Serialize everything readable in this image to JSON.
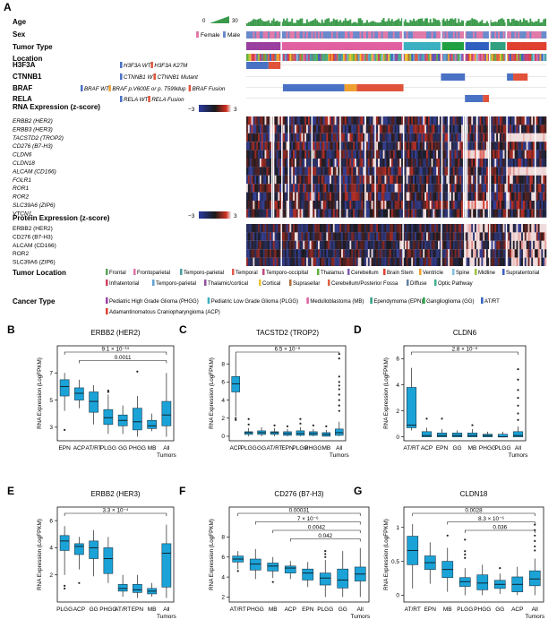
{
  "panel_labels": [
    "A",
    "B",
    "C",
    "D",
    "E",
    "F",
    "G"
  ],
  "heatmap": {
    "annotation_tracks": [
      "Age",
      "Sex",
      "Tumor Type",
      "Location"
    ],
    "age_legend": {
      "min": "0",
      "max": "30"
    },
    "sex_legend": [
      "Female",
      "Male"
    ],
    "mutation_tracks": [
      {
        "label": "H3F3A",
        "legend": [
          {
            "text": "H3F3A WT",
            "italic": true,
            "color": "#4a72c4"
          },
          {
            "text": "H3F3A K27M",
            "italic": true,
            "color": "#e0533a"
          }
        ]
      },
      {
        "label": "CTNNB1",
        "legend": [
          {
            "text": "CTNNB1 WT",
            "italic": true,
            "color": "#4a72c4"
          },
          {
            "text": "CTNNB1 Mutant",
            "italic": true,
            "color": "#e0533a"
          }
        ]
      },
      {
        "label": "BRAF",
        "legend": [
          {
            "text": "BRAF WT",
            "italic": true,
            "color": "#4a72c4"
          },
          {
            "text": "BRAF p.V600E or p. T599dup",
            "italic": true,
            "color": "#f0a030"
          },
          {
            "text": "BRAF Fusion",
            "italic": true,
            "color": "#e0533a"
          }
        ]
      },
      {
        "label": "RELA",
        "legend": [
          {
            "text": "RELA WT",
            "italic": true,
            "color": "#4a72c4"
          },
          {
            "text": "RELA Fusion",
            "italic": true,
            "color": "#e0533a"
          }
        ]
      }
    ],
    "rna_title": "RNA Expression (z-score)",
    "rna_genes": [
      "ERBB2 (HER2)",
      "ERBB3 (HER3)",
      "TACSTD2 (TROP2)",
      "CD276 (B7-H3)",
      "CLDN6",
      "CLDN18",
      "ALCAM (CD166)",
      "FOLR1",
      "ROR1",
      "ROR2",
      "SLC39A6 (ZIP6)",
      "VTCN1"
    ],
    "protein_title": "Protein Expression (z-score)",
    "protein_genes": [
      "ERBB2 (HER2)",
      "CD276 (B7-H3)",
      "ALCAM (CD166)",
      "ROR2",
      "SLC39A6 (ZIP6)"
    ],
    "zscale": {
      "min": "−3",
      "max": "3"
    },
    "tumor_location_title": "Tumor Location",
    "tumor_locations": [
      {
        "name": "Frontal",
        "color": "#5aa65a"
      },
      {
        "name": "Frontoparietal",
        "color": "#e070a8"
      },
      {
        "name": "Temporo-parietal",
        "color": "#4aa0a0"
      },
      {
        "name": "Temporal",
        "color": "#e05a50"
      },
      {
        "name": "Temporo-occipital",
        "color": "#c04a80"
      },
      {
        "name": "Thalamus",
        "color": "#60b040"
      },
      {
        "name": "Cerebellum",
        "color": "#8060b0"
      },
      {
        "name": "Brain Stem",
        "color": "#e04030"
      },
      {
        "name": "Ventricle",
        "color": "#f0a030"
      },
      {
        "name": "Spine",
        "color": "#80c0e0"
      },
      {
        "name": "Midline",
        "color": "#a0c040"
      },
      {
        "name": "Supratentorial",
        "color": "#4060c0"
      },
      {
        "name": "Infratentorial",
        "color": "#d04060"
      },
      {
        "name": "Temporo-parietal",
        "color": "#60a0d0"
      },
      {
        "name": "Thalamic/cortical",
        "color": "#9050a0"
      },
      {
        "name": "Cortical",
        "color": "#f0c030"
      },
      {
        "name": "Suprasellar",
        "color": "#b07040"
      },
      {
        "name": "Cerebellum/Posterior Fossa",
        "color": "#e06040"
      },
      {
        "name": "Diffuse",
        "color": "#6080a0"
      },
      {
        "name": "Optic Pathway",
        "color": "#40b090"
      }
    ],
    "cancer_type_title": "Cancer Type",
    "cancer_types": [
      {
        "name": "Pediatric High Grade Glioma (PHGG)",
        "color": "#9a3fa0"
      },
      {
        "name": "Pediatric Low Grade Glioma (PLGG)",
        "color": "#3ab0c0"
      },
      {
        "name": "Medulloblastoma (MB)",
        "color": "#e060a0"
      },
      {
        "name": "Ependymoma (EPN)",
        "color": "#30a080"
      },
      {
        "name": "Ganglioglioma (GG)",
        "color": "#20a040"
      },
      {
        "name": "AT/RT",
        "color": "#3060c0"
      },
      {
        "name": "Adamantinomatous Craniopharyngioma (ACP)",
        "color": "#e04030"
      }
    ]
  },
  "chart_data": [
    {
      "panel": "B",
      "type": "box",
      "title": "ERBB2 (HER2)",
      "ylabel": "RNA Expression (LogFPKM)",
      "ylim": [
        2,
        9
      ],
      "yticks": [
        "3",
        "5",
        "7"
      ],
      "categories": [
        "EPN",
        "ACP",
        "AT/RT",
        "PLGG",
        "GG",
        "PHGG",
        "MB",
        "All Tumors"
      ],
      "boxes": [
        {
          "q1": 5.3,
          "median": 6.0,
          "q3": 6.5,
          "lo": 4.2,
          "hi": 7.0,
          "out": [
            2.8
          ]
        },
        {
          "q1": 5.0,
          "median": 5.5,
          "q3": 5.9,
          "lo": 4.4,
          "hi": 6.5,
          "out": []
        },
        {
          "q1": 4.1,
          "median": 4.9,
          "q3": 5.6,
          "lo": 3.2,
          "hi": 6.1,
          "out": []
        },
        {
          "q1": 3.2,
          "median": 3.7,
          "q3": 4.3,
          "lo": 2.5,
          "hi": 5.4,
          "out": [
            5.6,
            5.7
          ]
        },
        {
          "q1": 3.1,
          "median": 3.5,
          "q3": 3.9,
          "lo": 2.5,
          "hi": 4.6,
          "out": []
        },
        {
          "q1": 2.8,
          "median": 3.4,
          "q3": 4.4,
          "lo": 2.3,
          "hi": 5.3,
          "out": [
            7.1
          ]
        },
        {
          "q1": 2.9,
          "median": 3.1,
          "q3": 3.5,
          "lo": 2.7,
          "hi": 4.0,
          "out": []
        },
        {
          "q1": 3.1,
          "median": 3.9,
          "q3": 4.9,
          "lo": 2.3,
          "hi": 7.0,
          "out": []
        }
      ],
      "brackets": [
        {
          "from": 0,
          "to": 7,
          "label": "9.1 × 10⁻¹⁵"
        },
        {
          "from": 1,
          "to": 7,
          "label": "0.0011"
        }
      ]
    },
    {
      "panel": "C",
      "type": "box",
      "title": "TACSTD2 (TROP2)",
      "ylabel": "RNA Expression (LogFPKM)",
      "ylim": [
        -0.5,
        10
      ],
      "yticks": [
        "0",
        "2",
        "4",
        "6",
        "8"
      ],
      "categories": [
        "ACP",
        "PLGG",
        "GG",
        "AT/RT",
        "EPN",
        "PLGG",
        "PHGG",
        "MB",
        "All Tumors"
      ],
      "boxes": [
        {
          "q1": 4.9,
          "median": 5.8,
          "q3": 6.6,
          "lo": 2.2,
          "hi": 9.0,
          "out": [
            1.8,
            2.0
          ]
        },
        {
          "q1": 0.2,
          "median": 0.4,
          "q3": 0.5,
          "lo": 0.0,
          "hi": 0.9,
          "out": [
            1.3,
            1.9
          ]
        },
        {
          "q1": 0.2,
          "median": 0.4,
          "q3": 0.6,
          "lo": 0.0,
          "hi": 1.0,
          "out": []
        },
        {
          "q1": 0.2,
          "median": 0.4,
          "q3": 0.5,
          "lo": 0.0,
          "hi": 0.9,
          "out": [
            1.2
          ]
        },
        {
          "q1": 0.1,
          "median": 0.3,
          "q3": 0.5,
          "lo": 0.0,
          "hi": 0.8,
          "out": [
            1.1
          ]
        },
        {
          "q1": 0.1,
          "median": 0.3,
          "q3": 0.6,
          "lo": 0.0,
          "hi": 1.0,
          "out": [
            1.4,
            1.9
          ]
        },
        {
          "q1": 0.1,
          "median": 0.3,
          "q3": 0.5,
          "lo": 0.0,
          "hi": 0.8,
          "out": [
            1.2
          ]
        },
        {
          "q1": 0.0,
          "median": 0.2,
          "q3": 0.4,
          "lo": 0.0,
          "hi": 0.7,
          "out": [
            1.1
          ]
        },
        {
          "q1": 0.1,
          "median": 0.4,
          "q3": 0.8,
          "lo": 0.0,
          "hi": 1.6,
          "out": [
            2.8,
            3.4,
            4.0,
            4.6,
            5.2,
            5.6,
            6.0,
            6.6,
            8.6,
            9.1
          ]
        }
      ],
      "brackets": [
        {
          "from": 0,
          "to": 8,
          "label": "6.5 × 10⁻⁶"
        }
      ]
    },
    {
      "panel": "D",
      "type": "box",
      "title": "CLDN6",
      "ylabel": "RNA Expression (LogFPKM)",
      "ylim": [
        -0.3,
        7
      ],
      "yticks": [
        "0",
        "2",
        "4",
        "6"
      ],
      "categories": [
        "AT/RT",
        "ACP",
        "EPN",
        "GG",
        "MB",
        "PHGG",
        "PLGG",
        "All Tumors"
      ],
      "boxes": [
        {
          "q1": 0.7,
          "median": 0.9,
          "q3": 3.8,
          "lo": 0.5,
          "hi": 5.3,
          "out": []
        },
        {
          "q1": 0.0,
          "median": 0.1,
          "q3": 0.4,
          "lo": 0.0,
          "hi": 0.7,
          "out": [
            1.4
          ]
        },
        {
          "q1": 0.0,
          "median": 0.1,
          "q3": 0.3,
          "lo": 0.0,
          "hi": 0.6,
          "out": [
            1.4
          ]
        },
        {
          "q1": 0.0,
          "median": 0.1,
          "q3": 0.3,
          "lo": 0.0,
          "hi": 0.5,
          "out": []
        },
        {
          "q1": 0.0,
          "median": 0.1,
          "q3": 0.3,
          "lo": 0.0,
          "hi": 0.6,
          "out": [
            0.9
          ]
        },
        {
          "q1": 0.0,
          "median": 0.1,
          "q3": 0.2,
          "lo": 0.0,
          "hi": 0.4,
          "out": []
        },
        {
          "q1": 0.0,
          "median": 0.0,
          "q3": 0.2,
          "lo": 0.0,
          "hi": 0.4,
          "out": []
        },
        {
          "q1": 0.0,
          "median": 0.1,
          "q3": 0.4,
          "lo": 0.0,
          "hi": 0.8,
          "out": [
            1.3,
            1.8,
            2.4,
            3.0,
            3.6,
            4.4,
            5.2
          ]
        }
      ],
      "brackets": [
        {
          "from": 0,
          "to": 7,
          "label": "2.8 × 10⁻⁶"
        }
      ]
    },
    {
      "panel": "E",
      "type": "box",
      "title": "ERBB2 (HER3)",
      "ylabel": "RNA Expression (LogFPKM)",
      "ylim": [
        0,
        7
      ],
      "yticks": [
        "2",
        "4",
        "6"
      ],
      "categories": [
        "PLGG",
        "ACP",
        "GG",
        "PHGG",
        "AT/RT",
        "EPN",
        "MB",
        "All Tumors"
      ],
      "boxes": [
        {
          "q1": 3.8,
          "median": 4.5,
          "q3": 4.9,
          "lo": 2.0,
          "hi": 5.6,
          "out": [
            1.0,
            1.2
          ]
        },
        {
          "q1": 3.5,
          "median": 4.1,
          "q3": 4.3,
          "lo": 2.4,
          "hi": 4.8,
          "out": [
            1.4
          ]
        },
        {
          "q1": 3.2,
          "median": 4.0,
          "q3": 4.5,
          "lo": 1.9,
          "hi": 5.3,
          "out": []
        },
        {
          "q1": 2.1,
          "median": 3.2,
          "q3": 4.0,
          "lo": 1.4,
          "hi": 4.8,
          "out": []
        },
        {
          "q1": 0.8,
          "median": 1.0,
          "q3": 1.3,
          "lo": 0.4,
          "hi": 2.0,
          "out": []
        },
        {
          "q1": 0.7,
          "median": 0.9,
          "q3": 1.3,
          "lo": 0.3,
          "hi": 2.0,
          "out": []
        },
        {
          "q1": 0.6,
          "median": 0.8,
          "q3": 1.0,
          "lo": 0.4,
          "hi": 1.4,
          "out": []
        },
        {
          "q1": 1.1,
          "median": 3.6,
          "q3": 4.3,
          "lo": 0.3,
          "hi": 5.7,
          "out": []
        }
      ],
      "brackets": [
        {
          "from": 0,
          "to": 7,
          "label": "3.3 × 10⁻⁴"
        }
      ]
    },
    {
      "panel": "F",
      "type": "box",
      "title": "CD276 (B7-H3)",
      "ylabel": "RNA Expression (LogFPKM)",
      "ylim": [
        1.5,
        11
      ],
      "yticks": [
        "2",
        "4",
        "6",
        "8"
      ],
      "categories": [
        "AT/RT",
        "PHGG",
        "MB",
        "ACP",
        "EPN",
        "PLGG",
        "GG",
        "All Tumors"
      ],
      "boxes": [
        {
          "q1": 5.5,
          "median": 5.8,
          "q3": 6.1,
          "lo": 4.8,
          "hi": 6.6,
          "out": [
            4.6
          ]
        },
        {
          "q1": 4.7,
          "median": 5.3,
          "q3": 5.8,
          "lo": 3.8,
          "hi": 6.8,
          "out": []
        },
        {
          "q1": 4.6,
          "median": 5.1,
          "q3": 5.4,
          "lo": 3.9,
          "hi": 6.0,
          "out": [
            3.5
          ]
        },
        {
          "q1": 4.4,
          "median": 4.9,
          "q3": 5.1,
          "lo": 3.8,
          "hi": 5.6,
          "out": []
        },
        {
          "q1": 3.7,
          "median": 4.4,
          "q3": 4.8,
          "lo": 3.0,
          "hi": 5.5,
          "out": []
        },
        {
          "q1": 3.2,
          "median": 3.9,
          "q3": 4.4,
          "lo": 2.0,
          "hi": 5.7,
          "out": [
            6.0,
            6.3,
            6.6
          ]
        },
        {
          "q1": 2.9,
          "median": 3.7,
          "q3": 4.8,
          "lo": 2.0,
          "hi": 6.6,
          "out": []
        },
        {
          "q1": 3.6,
          "median": 4.3,
          "q3": 5.0,
          "lo": 2.0,
          "hi": 6.9,
          "out": []
        }
      ],
      "brackets": [
        {
          "from": 0,
          "to": 7,
          "label": "0.00031"
        },
        {
          "from": 1,
          "to": 7,
          "label": "7 × 10⁻⁶"
        },
        {
          "from": 2,
          "to": 7,
          "label": "0.0042"
        },
        {
          "from": 3,
          "to": 7,
          "label": "0.042"
        }
      ]
    },
    {
      "panel": "G",
      "type": "box",
      "title": "CLDN18",
      "ylabel": "RNA Expression (LogFPKM)",
      "ylim": [
        -0.1,
        1.3
      ],
      "yticks": [
        "0",
        "0.5",
        "1"
      ],
      "categories": [
        "AT/RT",
        "EPN",
        "MB",
        "PLGG",
        "PHGG",
        "GG",
        "ACP",
        "All Tumors"
      ],
      "boxes": [
        {
          "q1": 0.45,
          "median": 0.66,
          "q3": 0.87,
          "lo": 0.1,
          "hi": 1.05,
          "out": []
        },
        {
          "q1": 0.38,
          "median": 0.48,
          "q3": 0.58,
          "lo": 0.17,
          "hi": 0.78,
          "out": []
        },
        {
          "q1": 0.26,
          "median": 0.38,
          "q3": 0.5,
          "lo": 0.05,
          "hi": 0.7,
          "out": [
            0.88
          ]
        },
        {
          "q1": 0.13,
          "median": 0.2,
          "q3": 0.26,
          "lo": 0.0,
          "hi": 0.4,
          "out": [
            0.55,
            0.6,
            0.65,
            0.82
          ]
        },
        {
          "q1": 0.08,
          "median": 0.18,
          "q3": 0.3,
          "lo": 0.0,
          "hi": 0.45,
          "out": []
        },
        {
          "q1": 0.1,
          "median": 0.16,
          "q3": 0.22,
          "lo": 0.02,
          "hi": 0.32,
          "out": [
            0.4
          ]
        },
        {
          "q1": 0.05,
          "median": 0.16,
          "q3": 0.27,
          "lo": 0.0,
          "hi": 0.42,
          "out": []
        },
        {
          "q1": 0.14,
          "median": 0.24,
          "q3": 0.36,
          "lo": 0.0,
          "hi": 0.54,
          "out": [
            0.66,
            0.72,
            0.8,
            0.88,
            0.96,
            1.04
          ]
        }
      ],
      "brackets": [
        {
          "from": 0,
          "to": 7,
          "label": "0.0028"
        },
        {
          "from": 2,
          "to": 7,
          "label": "8.3 × 10⁻⁶"
        },
        {
          "from": 3,
          "to": 7,
          "label": "0.036"
        }
      ]
    }
  ]
}
